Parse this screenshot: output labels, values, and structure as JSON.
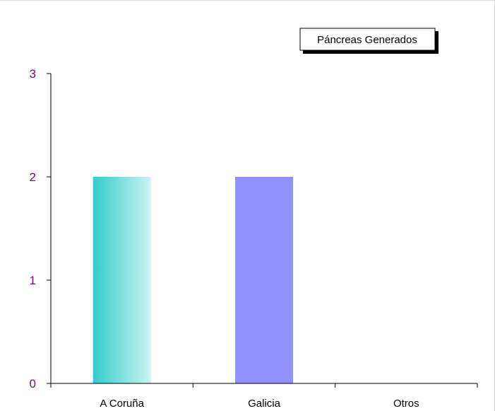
{
  "chart_data": {
    "type": "bar",
    "categories": [
      "A Coruña",
      "Galicia",
      "Otros"
    ],
    "series": [
      {
        "name": "Páncreas Generados",
        "values": [
          2,
          2,
          0
        ]
      }
    ],
    "bar_colors": [
      "#33cccc",
      "#9090ff",
      "#9090ff"
    ],
    "bar_gradient_end": "#ccf2f2",
    "y_tick_color": "#800080",
    "ylim": [
      0,
      3
    ],
    "yticks": [
      0,
      1,
      2,
      3
    ],
    "grid": false,
    "legend_position": "top-right",
    "title": "",
    "xlabel": "",
    "ylabel": ""
  },
  "legend": {
    "label": "Páncreas Generados"
  }
}
